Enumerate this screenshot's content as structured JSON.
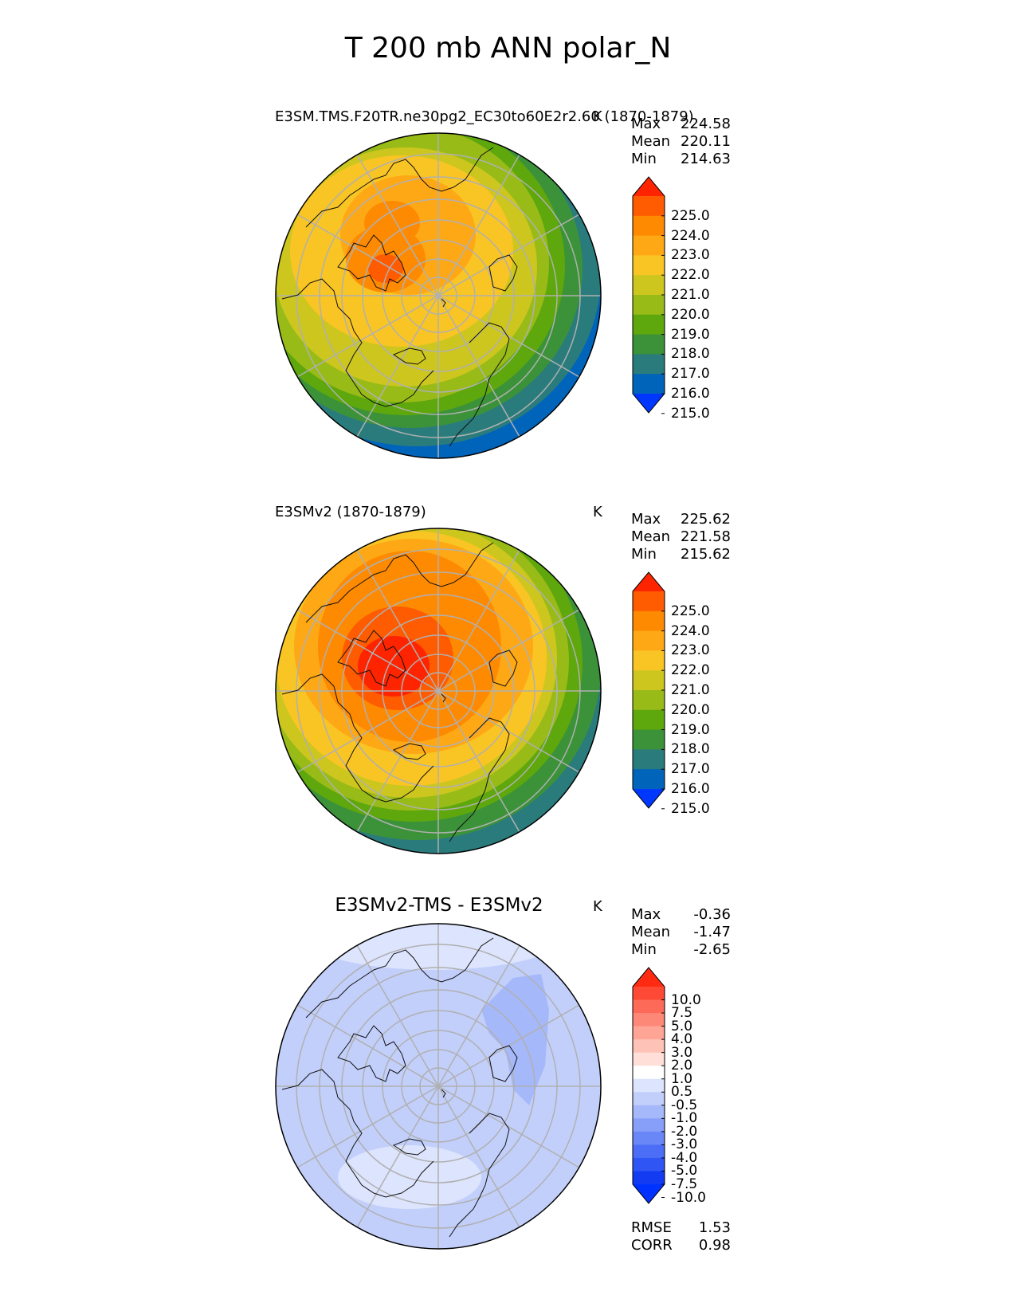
{
  "title": "T 200 mb ANN polar_N",
  "chart_data": [
    {
      "type": "heatmap",
      "title": "E3SM.TMS.F20TR.ne30pg2_EC30to60E2r2.60 (1870-1879)",
      "units": "K",
      "projection": "north polar stereographic",
      "stats": {
        "Max": "224.58",
        "Mean": "220.11",
        "Min": "214.63"
      },
      "colorbar": {
        "ticks": [
          "225.0",
          "224.0",
          "223.0",
          "222.0",
          "221.0",
          "220.0",
          "219.0",
          "218.0",
          "217.0",
          "216.0",
          "215.0"
        ],
        "colors": [
          "#fe2400",
          "#ff5b00",
          "#fe8a02",
          "#fea815",
          "#f9c524",
          "#cdc61f",
          "#98bb18",
          "#5ea70c",
          "#3c9239",
          "#2a7c7c",
          "#0164bb",
          "#0037fe"
        ]
      }
    },
    {
      "type": "heatmap",
      "title": "E3SMv2 (1870-1879)",
      "units": "K",
      "projection": "north polar stereographic",
      "stats": {
        "Max": "225.62",
        "Mean": "221.58",
        "Min": "215.62"
      },
      "colorbar": {
        "ticks": [
          "225.0",
          "224.0",
          "223.0",
          "222.0",
          "221.0",
          "220.0",
          "219.0",
          "218.0",
          "217.0",
          "216.0",
          "215.0"
        ],
        "colors": [
          "#fe2400",
          "#ff5b00",
          "#fe8a02",
          "#fea815",
          "#f9c524",
          "#cdc61f",
          "#98bb18",
          "#5ea70c",
          "#3c9239",
          "#2a7c7c",
          "#0164bb",
          "#0037fe"
        ]
      }
    },
    {
      "type": "heatmap",
      "title": "E3SMv2-TMS - E3SMv2",
      "units": "K",
      "projection": "north polar stereographic",
      "stats": {
        "Max": "-0.36",
        "Mean": "-1.47",
        "Min": "-2.65"
      },
      "metrics": {
        "RMSE": "1.53",
        "CORR": "0.98"
      },
      "colorbar": {
        "ticks": [
          "10.0",
          "7.5",
          "5.0",
          "4.0",
          "3.0",
          "2.0",
          "1.0",
          "0.5",
          "-0.5",
          "-1.0",
          "-2.0",
          "-3.0",
          "-4.0",
          "-5.0",
          "-7.5",
          "-10.0"
        ],
        "colors": [
          "#fe2b12",
          "#fe4a34",
          "#fe6a58",
          "#fe8878",
          "#fea596",
          "#ffc2b6",
          "#ffdfd8",
          "#ffffff",
          "#dde4fd",
          "#c2cffb",
          "#a5b8fa",
          "#879ff8",
          "#6a87f7",
          "#4c6ef6",
          "#2f56f4",
          "#133cf2",
          "#0032ff"
        ]
      }
    }
  ]
}
